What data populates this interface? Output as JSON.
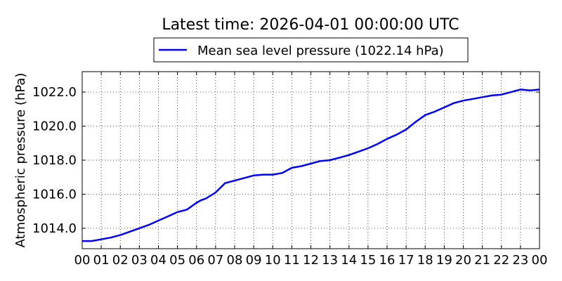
{
  "chart_data": {
    "type": "line",
    "title": "Latest time: 2026-04-01 00:00:00 UTC",
    "ylabel": "Atmospheric pressure (hPa)",
    "xlabel": "",
    "x_tick_labels": [
      "00",
      "01",
      "02",
      "03",
      "04",
      "05",
      "06",
      "07",
      "08",
      "09",
      "10",
      "11",
      "12",
      "13",
      "14",
      "15",
      "16",
      "17",
      "18",
      "19",
      "20",
      "21",
      "22",
      "23",
      "00"
    ],
    "y_ticks": [
      "1014.0",
      "1016.0",
      "1018.0",
      "1020.0",
      "1022.0"
    ],
    "y_tick_values": [
      1014,
      1016,
      1018,
      1020,
      1022
    ],
    "xlim": [
      0,
      24
    ],
    "ylim": [
      1012.8,
      1023.2
    ],
    "grid": true,
    "legend_position": "top-center",
    "series": [
      {
        "name": "Mean sea level pressure (1022.14 hPa)",
        "color": "#0000ff",
        "x": [
          0,
          0.5,
          1,
          1.5,
          2,
          2.5,
          3,
          3.5,
          4,
          4.5,
          5,
          5.5,
          6,
          6.25,
          6.5,
          7,
          7.5,
          8,
          8.5,
          9,
          9.5,
          10,
          10.5,
          11,
          11.5,
          12,
          12.5,
          13,
          13.5,
          14,
          14.5,
          15,
          15.5,
          16,
          16.5,
          17,
          17.5,
          18,
          18.5,
          19,
          19.5,
          20,
          20.5,
          21,
          21.5,
          22,
          22.5,
          23,
          23.5,
          24
        ],
        "values": [
          1013.25,
          1013.25,
          1013.35,
          1013.45,
          1013.6,
          1013.8,
          1014.0,
          1014.2,
          1014.45,
          1014.7,
          1014.95,
          1015.1,
          1015.5,
          1015.65,
          1015.75,
          1016.1,
          1016.65,
          1016.8,
          1016.95,
          1017.1,
          1017.15,
          1017.15,
          1017.25,
          1017.55,
          1017.65,
          1017.8,
          1017.95,
          1018.0,
          1018.15,
          1018.3,
          1018.5,
          1018.7,
          1018.95,
          1019.25,
          1019.5,
          1019.8,
          1020.25,
          1020.65,
          1020.85,
          1021.1,
          1021.35,
          1021.5,
          1021.6,
          1021.7,
          1021.8,
          1021.85,
          1022.0,
          1022.15,
          1022.1,
          1022.15
        ]
      }
    ]
  }
}
